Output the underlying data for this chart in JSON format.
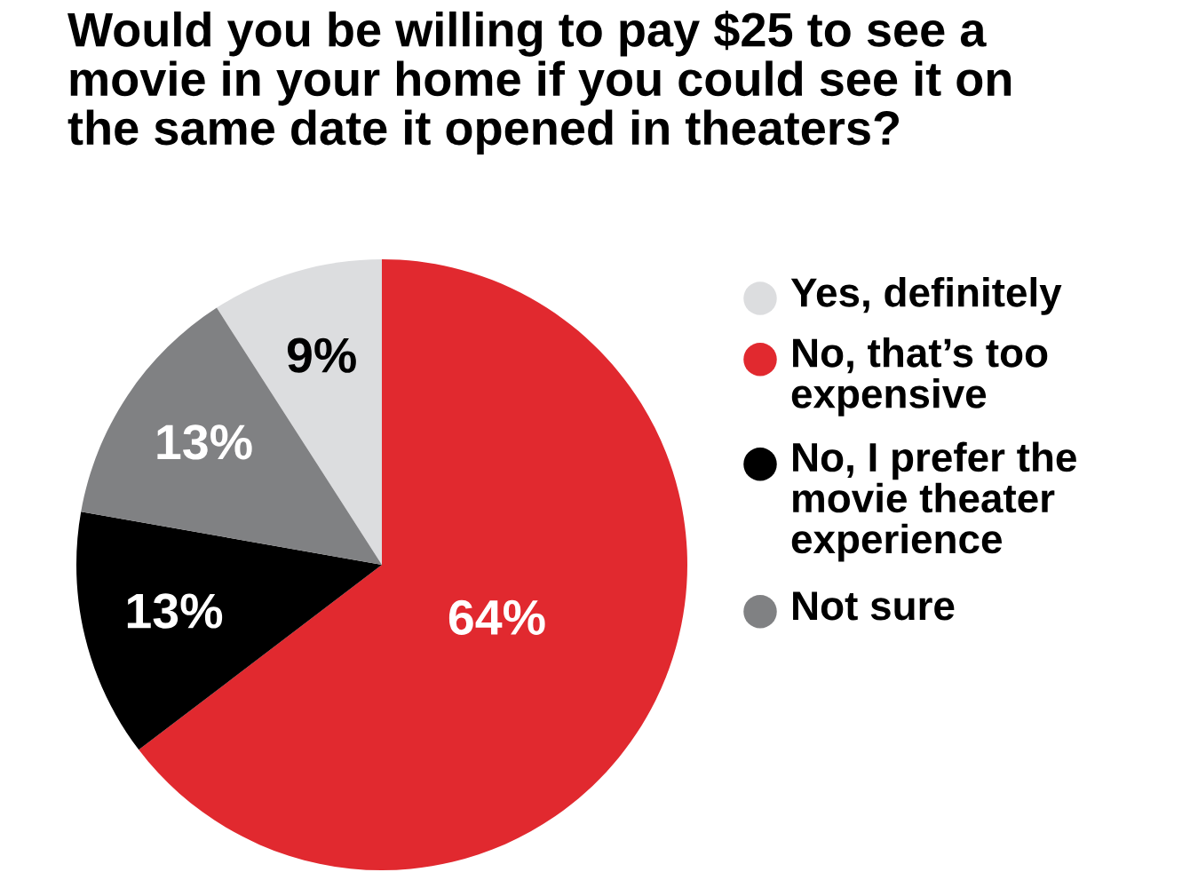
{
  "chart_data": {
    "type": "pie",
    "title": "Would you be willing to pay $25 to see a movie in your home if you could see it on the same date it opened in theaters?",
    "categories": [
      "Yes, definitely",
      "No, that’s too expensive",
      "No, I prefer the movie theater experience",
      "Not sure"
    ],
    "values": [
      9,
      64,
      13,
      13
    ],
    "colors": [
      "#dcdddf",
      "#e1292f",
      "#000000",
      "#808183"
    ],
    "value_labels": [
      "9%",
      "64%",
      "13%",
      "13%"
    ],
    "legend": "right"
  }
}
